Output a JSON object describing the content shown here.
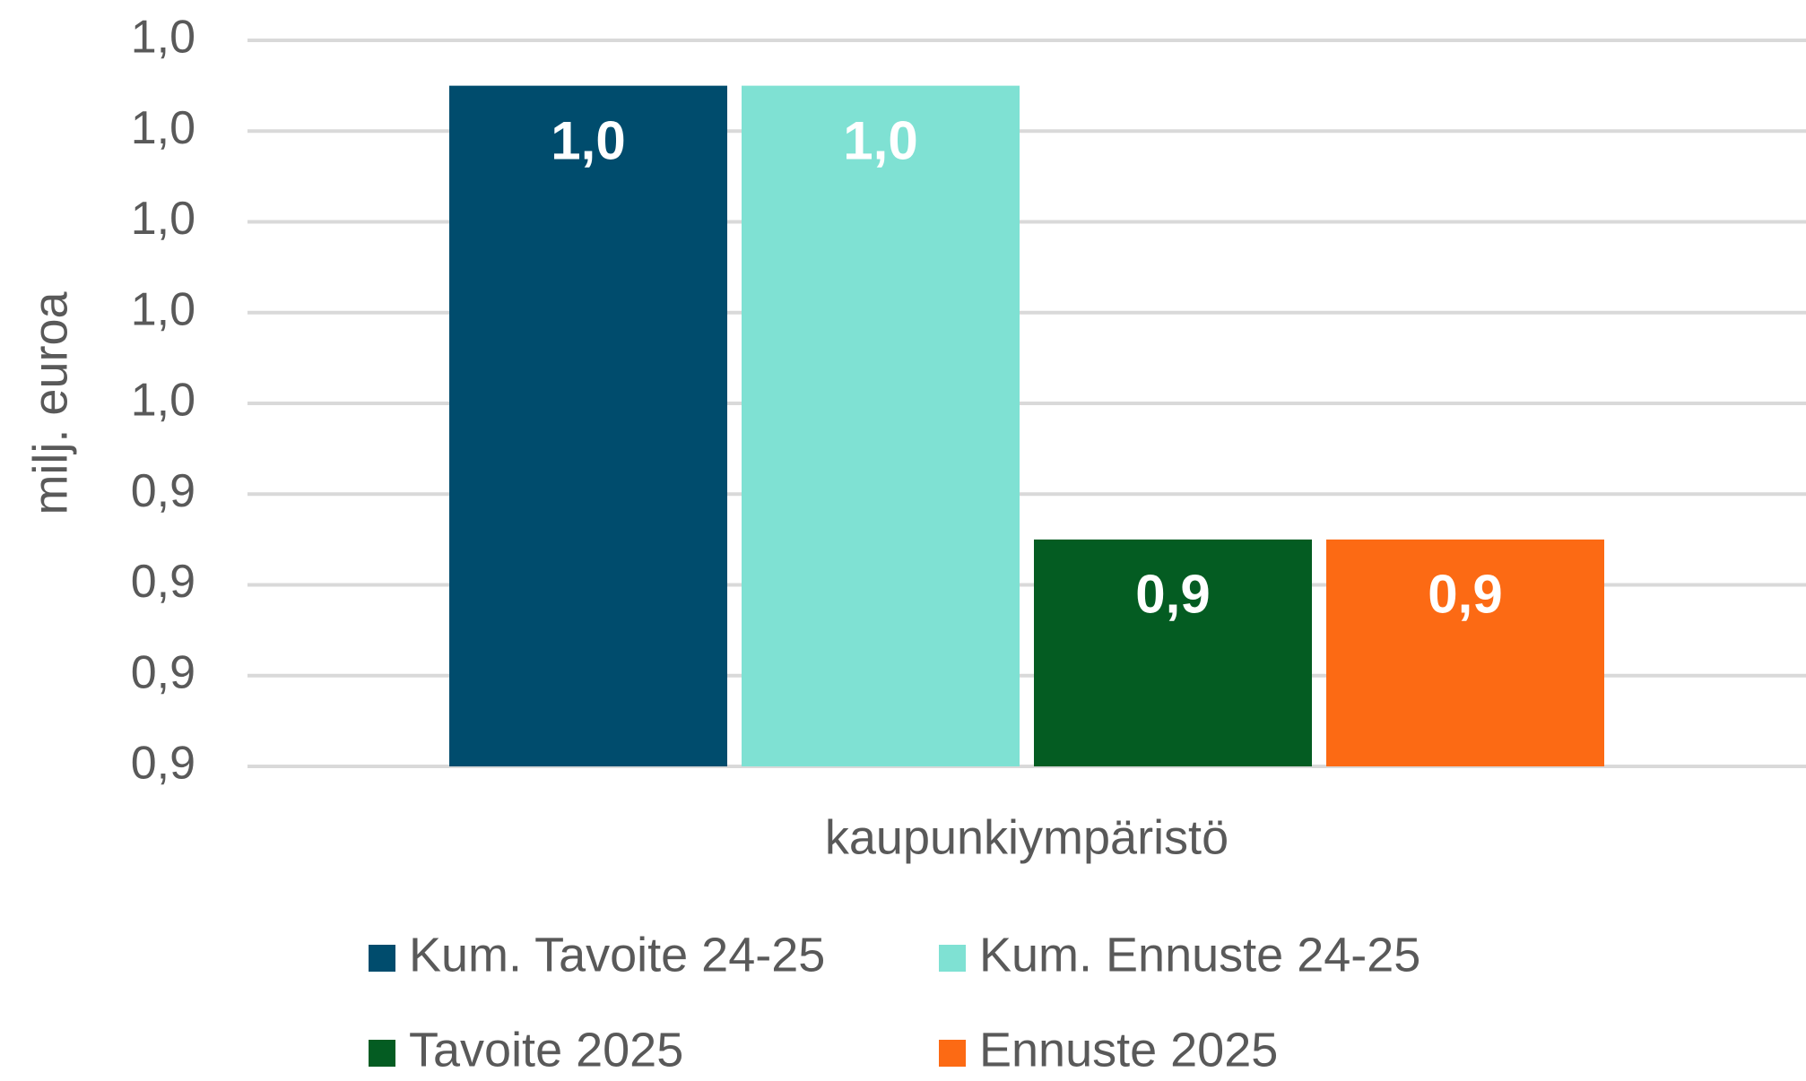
{
  "chart_data": {
    "type": "bar",
    "y_label": "milj. euroa",
    "categories": [
      "kaupunkiympäristö"
    ],
    "series": [
      {
        "name": "Kum. Tavoite 24-25",
        "color": "#004c6d",
        "values": [
          1.03
        ],
        "value_labels": [
          "1,0"
        ]
      },
      {
        "name": "Kum. Ennuste 24-25",
        "color": "#7fe1d3",
        "values": [
          1.03
        ],
        "value_labels": [
          "1,0"
        ]
      },
      {
        "name": "Tavoite 2025",
        "color": "#045c22",
        "values": [
          0.93
        ],
        "value_labels": [
          "0,9"
        ]
      },
      {
        "name": "Ennuste 2025",
        "color": "#fc6a14",
        "values": [
          0.93
        ],
        "value_labels": [
          "0,9"
        ]
      }
    ],
    "ylim": [
      0.88,
      1.04
    ],
    "yticks": [
      {
        "value": 0.88,
        "label": "0,9"
      },
      {
        "value": 0.9,
        "label": "0,9"
      },
      {
        "value": 0.92,
        "label": "0,9"
      },
      {
        "value": 0.94,
        "label": "0,9"
      },
      {
        "value": 0.96,
        "label": "1,0"
      },
      {
        "value": 0.98,
        "label": "1,0"
      },
      {
        "value": 1.0,
        "label": "1,0"
      },
      {
        "value": 1.02,
        "label": "1,0"
      },
      {
        "value": 1.04,
        "label": "1,0"
      }
    ],
    "grid": true,
    "legend": "bottom"
  }
}
